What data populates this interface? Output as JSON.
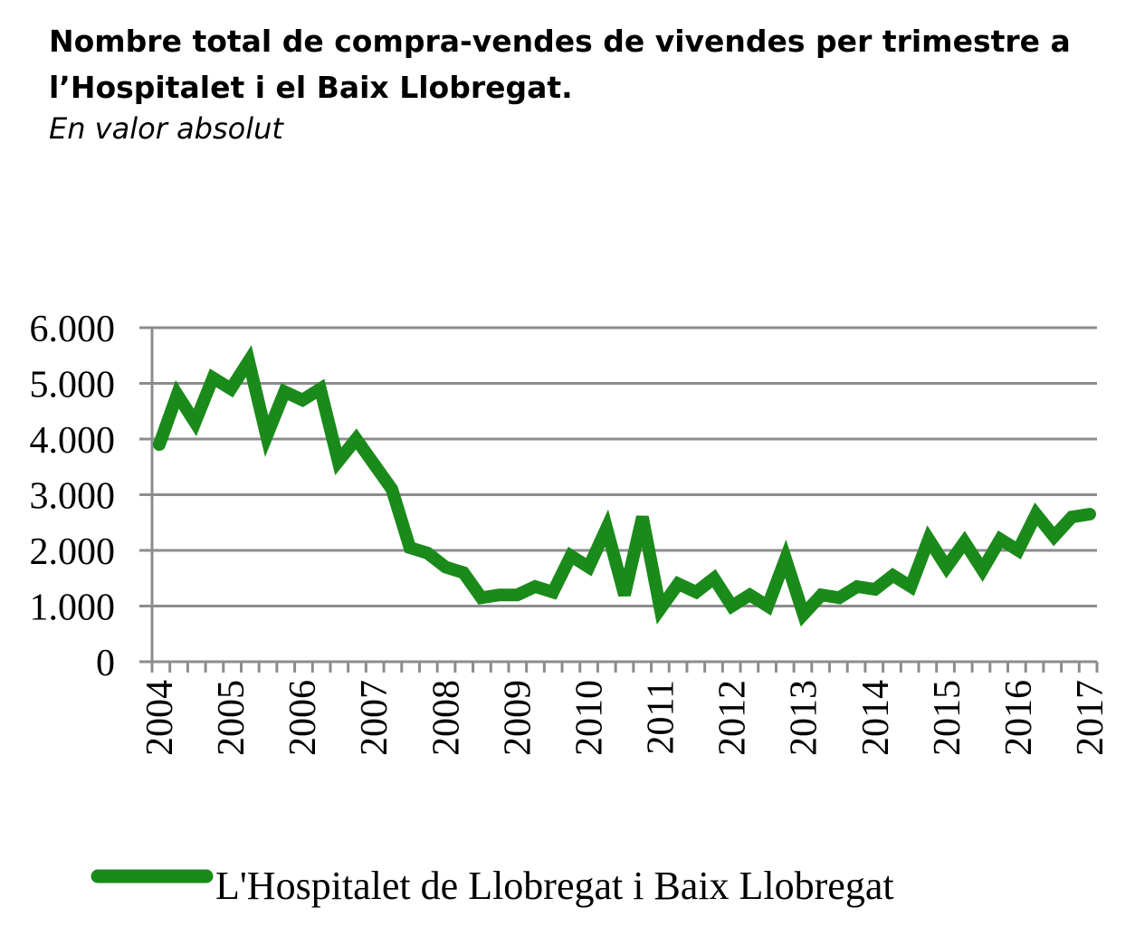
{
  "chart_data": {
    "type": "line",
    "title": "Nombre total de compra-vendes de vivendes per trimestre a l’Hospitalet i el Baix Llobregat.",
    "subtitle": "En valor absolut",
    "xlabel": "",
    "ylabel": "",
    "ylim": [
      0,
      6000
    ],
    "y_ticks": [
      0,
      1000,
      2000,
      3000,
      4000,
      5000,
      6000
    ],
    "y_tick_labels": [
      "0",
      "1.000",
      "2.000",
      "3.000",
      "4.000",
      "5.000",
      "6.000"
    ],
    "x_tick_labels": [
      "2004",
      "2005",
      "2006",
      "2007",
      "2008",
      "2009",
      "2010",
      "2011",
      "2012",
      "2013",
      "2014",
      "2015",
      "2016",
      "2017"
    ],
    "grid": true,
    "legend_position": "bottom",
    "color": "#1a8a1a",
    "series": [
      {
        "name": "L'Hospitalet de Llobregat i Baix Llobregat",
        "x": [
          "2004 T1",
          "2004 T2",
          "2004 T3",
          "2004 T4",
          "2005 T1",
          "2005 T2",
          "2005 T3",
          "2005 T4",
          "2006 T1",
          "2006 T2",
          "2006 T3",
          "2006 T4",
          "2007 T1",
          "2007 T2",
          "2007 T3",
          "2007 T4",
          "2008 T1",
          "2008 T2",
          "2008 T3",
          "2008 T4",
          "2009 T1",
          "2009 T2",
          "2009 T3",
          "2009 T4",
          "2010 T1",
          "2010 T2",
          "2010 T3",
          "2010 T4",
          "2011 T1",
          "2011 T2",
          "2011 T3",
          "2011 T4",
          "2012 T1",
          "2012 T2",
          "2012 T3",
          "2012 T4",
          "2013 T1",
          "2013 T2",
          "2013 T3",
          "2013 T4",
          "2014 T1",
          "2014 T2",
          "2014 T3",
          "2014 T4",
          "2015 T1",
          "2015 T2",
          "2015 T3",
          "2015 T4",
          "2016 T1",
          "2016 T2",
          "2016 T3",
          "2016 T4",
          "2017 T1"
        ],
        "values": [
          3900,
          4800,
          4300,
          5100,
          4900,
          5400,
          4050,
          4850,
          4700,
          4900,
          3600,
          4000,
          3550,
          3100,
          2050,
          1950,
          1700,
          1600,
          1150,
          1200,
          1200,
          1350,
          1250,
          1900,
          1700,
          2400,
          1200,
          2600,
          950,
          1400,
          1250,
          1500,
          1000,
          1200,
          1000,
          1850,
          850,
          1200,
          1150,
          1350,
          1300,
          1550,
          1350,
          2200,
          1700,
          2150,
          1650,
          2200,
          2000,
          2650,
          2250,
          2600,
          2650
        ]
      }
    ]
  }
}
